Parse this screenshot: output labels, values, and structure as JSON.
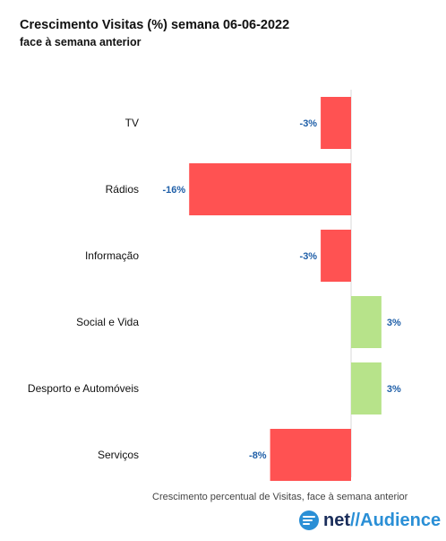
{
  "chart_data": {
    "type": "bar",
    "orientation": "horizontal",
    "title": "Crescimento Visitas (%) semana 06-06-2022",
    "subtitle": "face à semana anterior",
    "categories": [
      "TV",
      "Rádios",
      "Informação",
      "Social e Vida",
      "Desporto e Automóveis",
      "Serviços"
    ],
    "values": [
      -3,
      -16,
      -3,
      3,
      3,
      -8
    ],
    "value_labels": [
      "-3%",
      "-16%",
      "-3%",
      "3%",
      "3%",
      "-8%"
    ],
    "xlim": [
      -18,
      4
    ],
    "colors": {
      "negative": "#ff5252",
      "positive": "#b7e38a",
      "labels": "#1f5fa8"
    },
    "grid": false,
    "legend": "none"
  },
  "footnote": "Crescimento percentual de Visitas, face à semana anterior",
  "logo": {
    "part1": "net",
    "part2": "//",
    "part3": "Audience"
  }
}
